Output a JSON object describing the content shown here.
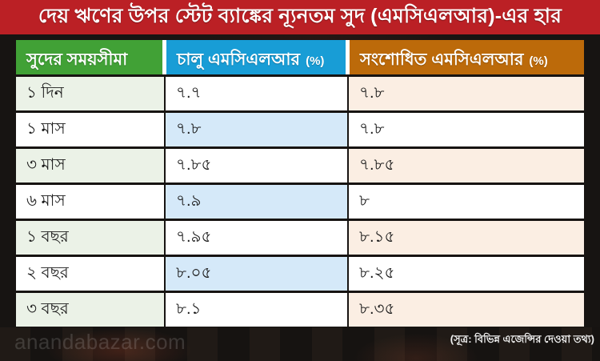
{
  "title_bar": {
    "text": "দেয় ঋণের উপর স্টেট ব্যাঙ্কের ন্যূনতম সুদ (এমসিএলআর)-এর হার"
  },
  "table": {
    "headers": [
      {
        "label": "সুদের সময়সীমা",
        "suffix": ""
      },
      {
        "label": "চালু এমসিএলআর",
        "suffix": "(%)"
      },
      {
        "label": "সংশোধিত এমসিএলআর",
        "suffix": "(%)"
      }
    ],
    "rows": [
      {
        "period": "১ দিন",
        "current": "৭.৭",
        "revised": "৭.৮"
      },
      {
        "period": "১ মাস",
        "current": "৭.৮",
        "revised": "৭.৮"
      },
      {
        "period": "৩ মাস",
        "current": "৭.৮৫",
        "revised": "৭.৮৫"
      },
      {
        "period": "৬ মাস",
        "current": "৭.৯",
        "revised": "৮"
      },
      {
        "period": "১ বছর",
        "current": "৭.৯৫",
        "revised": "৮.১৫"
      },
      {
        "period": "২ বছর",
        "current": "৮.০৫",
        "revised": "৮.২৫"
      },
      {
        "period": "৩ বছর",
        "current": "৮.১",
        "revised": "৮.৩৫"
      }
    ]
  },
  "footer": {
    "watermark": "anandabazar.com",
    "source_note": "(সূত্র: বিভিন্ন এজেন্সির দেওয়া তথ্য)"
  },
  "colors": {
    "title_bar_bg": "#bb2025",
    "header_period_bg": "#41a136",
    "header_current_bg": "#189dd6",
    "header_revised_bg": "#bc6a0a",
    "tint_period_cell": "#ebf2e7",
    "tint_current_cell": "#d5e9f9",
    "tint_revised_cell": "#fbeee3",
    "text_on_headers": "#ffffff",
    "text_in_cells": "#1b1b1b"
  },
  "chart_data": {
    "type": "table",
    "title": "দেয় ঋণের উপর স্টেট ব্যাঙ্কের ন্যূনতম সুদ (এমসিএলআর)-এর হার",
    "columns": [
      "সুদের সময়সীমা",
      "চালু এমসিএলআর (%)",
      "সংশোধিত এমসিএলআর (%)"
    ],
    "rows": [
      [
        "১ দিন",
        "৭.৭",
        "৭.৮"
      ],
      [
        "১ মাস",
        "৭.৮",
        "৭.৮"
      ],
      [
        "৩ মাস",
        "৭.৮৫",
        "৭.৮৫"
      ],
      [
        "৬ মাস",
        "৭.৯",
        "৮"
      ],
      [
        "১ বছর",
        "৭.৯৫",
        "৮.১৫"
      ],
      [
        "২ বছর",
        "৮.০৫",
        "৮.২৫"
      ],
      [
        "৩ বছর",
        "৮.১",
        "৮.৩৫"
      ]
    ],
    "rows_numeric": [
      [
        "1 day",
        7.7,
        7.8
      ],
      [
        "1 month",
        7.8,
        7.8
      ],
      [
        "3 months",
        7.85,
        7.85
      ],
      [
        "6 months",
        7.9,
        8.0
      ],
      [
        "1 year",
        7.95,
        8.15
      ],
      [
        "2 years",
        8.05,
        8.25
      ],
      [
        "3 years",
        8.1,
        8.35
      ]
    ],
    "source": "(সূত্র: বিভিন্ন এজেন্সির দেওয়া তথ্য)"
  }
}
